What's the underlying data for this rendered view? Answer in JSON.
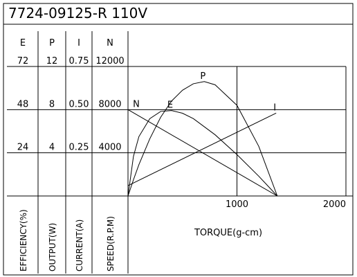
{
  "chart_data": {
    "type": "line",
    "title": "7724-09125-R   110V",
    "x_label": "TORQUE(g-cm)",
    "xlim": [
      0,
      2000
    ],
    "xticks": [
      1000,
      2000
    ],
    "grid": true,
    "color": "#000000",
    "axes": [
      {
        "name": "E",
        "label": "EFFICIENCY(%)",
        "ylim": [
          0,
          72
        ],
        "yticks": [
          24,
          48,
          72
        ]
      },
      {
        "name": "P",
        "label": "OUTPUT(W)",
        "ylim": [
          0,
          12
        ],
        "yticks": [
          4,
          8,
          12
        ]
      },
      {
        "name": "I",
        "label": "CURRENT(A)",
        "ylim": [
          0,
          0.75
        ],
        "yticks": [
          0.25,
          {
            "value": 0.5,
            "label": "0.50"
          },
          0.75
        ]
      },
      {
        "name": "N",
        "label": "SPEED(R.P.M)",
        "ylim": [
          0,
          12000
        ],
        "yticks": [
          4000,
          8000,
          12000
        ]
      }
    ],
    "series": [
      {
        "name": "N",
        "axis": 3,
        "x": [
          0,
          1370
        ],
        "values": [
          8000,
          0
        ]
      },
      {
        "name": "E",
        "axis": 0,
        "x": [
          0,
          50,
          100,
          200,
          300,
          400,
          500,
          600,
          800,
          1000,
          1200,
          1370
        ],
        "values": [
          0,
          22,
          33,
          43,
          47,
          47.5,
          46,
          43,
          34,
          23,
          11,
          0
        ]
      },
      {
        "name": "P",
        "axis": 1,
        "x": [
          0,
          50,
          100,
          200,
          300,
          400,
          500,
          600,
          700,
          800,
          1000,
          1200,
          1370
        ],
        "values": [
          0,
          1.5,
          2.9,
          5.3,
          7.3,
          8.8,
          9.8,
          10.4,
          10.6,
          10.3,
          8.4,
          4.6,
          0
        ]
      },
      {
        "name": "I",
        "axis": 2,
        "x": [
          0,
          1360
        ],
        "values": [
          0.06,
          0.48
        ]
      }
    ]
  }
}
